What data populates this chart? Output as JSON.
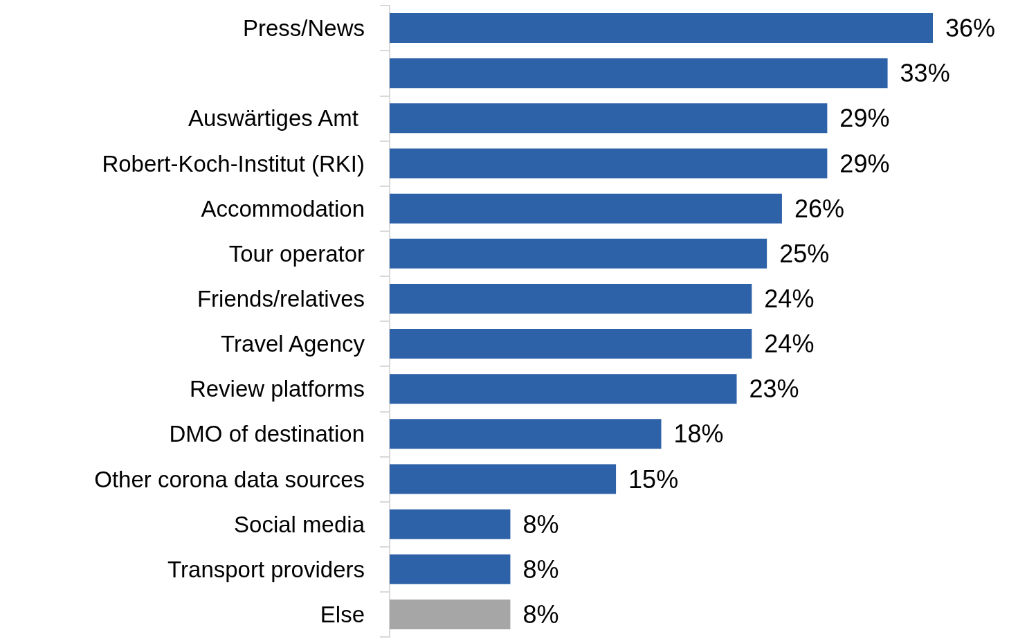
{
  "chart_data": {
    "type": "bar",
    "orientation": "horizontal",
    "categories": [
      "Press/News",
      null,
      "Auswärtiges Amt ",
      "Robert-Koch-Institut (RKI)",
      "Accommodation",
      "Tour operator",
      "Friends/relatives",
      "Travel Agency",
      "Review platforms",
      "DMO of destination",
      "Other corona data sources",
      "Social media",
      "Transport providers",
      "Else"
    ],
    "values": [
      36,
      33,
      29,
      29,
      26,
      25,
      24,
      24,
      23,
      18,
      15,
      8,
      8,
      8
    ],
    "value_labels": [
      "36%",
      "33%",
      "29%",
      "29%",
      "26%",
      "25%",
      "24%",
      "24%",
      "23%",
      "18%",
      "15%",
      "8%",
      "8%",
      "8%"
    ],
    "colors": [
      "#2e62a8",
      "#2e62a8",
      "#2e62a8",
      "#2e62a8",
      "#2e62a8",
      "#2e62a8",
      "#2e62a8",
      "#2e62a8",
      "#2e62a8",
      "#2e62a8",
      "#2e62a8",
      "#2e62a8",
      "#2e62a8",
      "#a6a6a6"
    ]
  }
}
